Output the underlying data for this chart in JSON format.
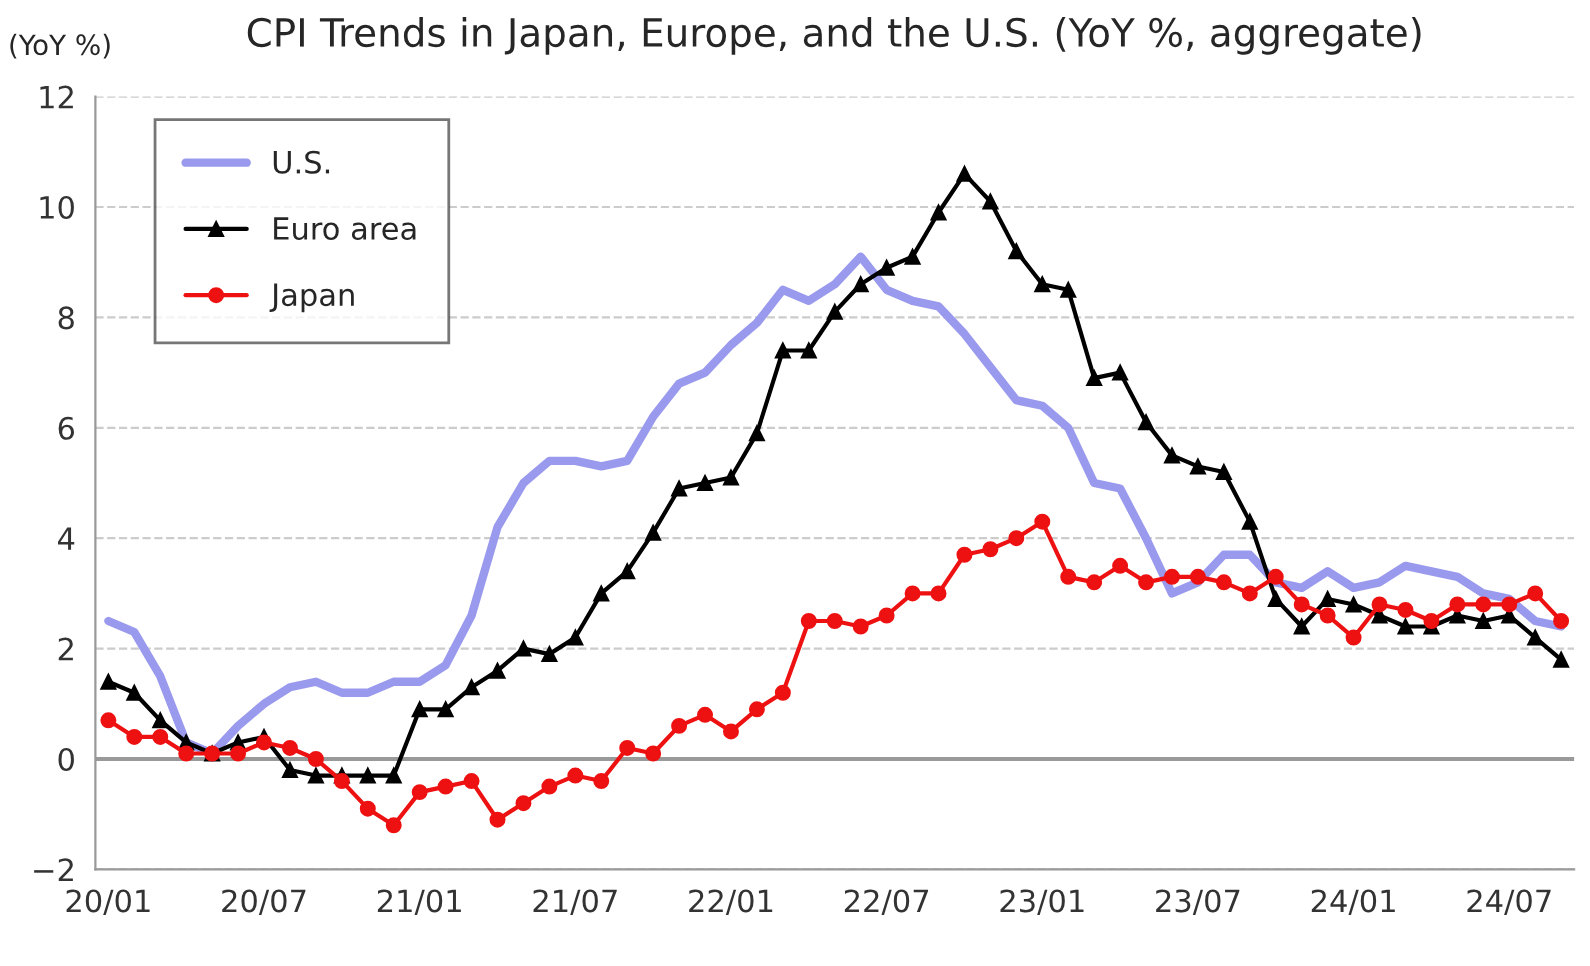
{
  "chart_data": {
    "type": "line",
    "title": "CPI Trends in Japan, Europe, and the U.S. (YoY %, aggregate)",
    "ylabel": "(YoY %)",
    "categories": [
      "20/01",
      null,
      null,
      null,
      null,
      null,
      "20/07",
      null,
      null,
      null,
      null,
      null,
      "21/01",
      null,
      null,
      null,
      null,
      null,
      "21/07",
      null,
      null,
      null,
      null,
      null,
      "22/01",
      null,
      null,
      null,
      null,
      null,
      "22/07",
      null,
      null,
      null,
      null,
      null,
      "23/01",
      null,
      null,
      null,
      null,
      null,
      "23/07",
      null,
      null,
      null,
      null,
      null,
      "24/01",
      null,
      null,
      null,
      null,
      null,
      "24/07",
      null,
      null
    ],
    "series": [
      {
        "name": "U.S.",
        "color": "#9999ee",
        "marker": "none",
        "values": [
          2.5,
          2.3,
          1.5,
          0.3,
          0.1,
          0.6,
          1.0,
          1.3,
          1.4,
          1.2,
          1.2,
          1.4,
          1.4,
          1.7,
          2.6,
          4.2,
          5.0,
          5.4,
          5.4,
          5.3,
          5.4,
          6.2,
          6.8,
          7.0,
          7.5,
          7.9,
          8.5,
          8.3,
          8.6,
          9.1,
          8.5,
          8.3,
          8.2,
          7.7,
          7.1,
          6.5,
          6.4,
          6.0,
          5.0,
          4.9,
          4.0,
          3.0,
          3.2,
          3.7,
          3.7,
          3.2,
          3.1,
          3.4,
          3.1,
          3.2,
          3.5,
          3.4,
          3.3,
          3.0,
          2.9,
          2.5,
          2.4
        ]
      },
      {
        "name": "Euro area",
        "color": "#000000",
        "marker": "triangle",
        "values": [
          1.4,
          1.2,
          0.7,
          0.3,
          0.1,
          0.3,
          0.4,
          -0.2,
          -0.3,
          -0.3,
          -0.3,
          -0.3,
          0.9,
          0.9,
          1.3,
          1.6,
          2.0,
          1.9,
          2.2,
          3.0,
          3.4,
          4.1,
          4.9,
          5.0,
          5.1,
          5.9,
          7.4,
          7.4,
          8.1,
          8.6,
          8.9,
          9.1,
          9.9,
          10.6,
          10.1,
          9.2,
          8.6,
          8.5,
          6.9,
          7.0,
          6.1,
          5.5,
          5.3,
          5.2,
          4.3,
          2.9,
          2.4,
          2.9,
          2.8,
          2.6,
          2.4,
          2.4,
          2.6,
          2.5,
          2.6,
          2.2,
          1.8
        ]
      },
      {
        "name": "Japan",
        "color": "#ee1111",
        "marker": "circle",
        "values": [
          0.7,
          0.4,
          0.4,
          0.1,
          0.1,
          0.1,
          0.3,
          0.2,
          0.0,
          -0.4,
          -0.9,
          -1.2,
          -0.6,
          -0.5,
          -0.4,
          -1.1,
          -0.8,
          -0.5,
          -0.3,
          -0.4,
          0.2,
          0.1,
          0.6,
          0.8,
          0.5,
          0.9,
          1.2,
          2.5,
          2.5,
          2.4,
          2.6,
          3.0,
          3.0,
          3.7,
          3.8,
          4.0,
          4.3,
          3.3,
          3.2,
          3.5,
          3.2,
          3.3,
          3.3,
          3.2,
          3.0,
          3.3,
          2.8,
          2.6,
          2.2,
          2.8,
          2.7,
          2.5,
          2.8,
          2.8,
          2.8,
          3.0,
          2.5
        ]
      }
    ],
    "ylim": [
      -2,
      12
    ],
    "yticks": [
      {
        "value": -2,
        "label": "−2"
      },
      0,
      2,
      4,
      6,
      8,
      10,
      12
    ],
    "ref_lines": [
      {
        "axis": "y",
        "value": 0,
        "color": "#999999",
        "line_style": "solid"
      }
    ],
    "grid": "y",
    "legend": "top left"
  }
}
